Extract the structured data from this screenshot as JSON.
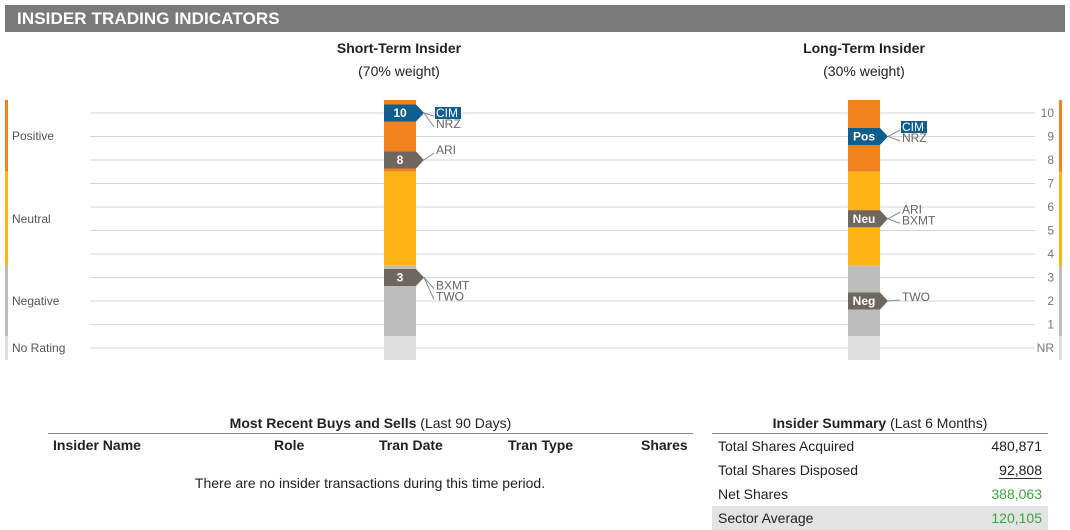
{
  "header": {
    "title": "INSIDER TRADING INDICATORS"
  },
  "short_term": {
    "title": "Short-Term Insider",
    "weight": "(70% weight)"
  },
  "long_term": {
    "title": "Long-Term Insider",
    "weight": "(30% weight)"
  },
  "colors": {
    "positive": "#f0831e",
    "neutral": "#fdb515",
    "negative": "#bdbdbd",
    "no_rating": "#dedede",
    "marker_dark": "#6f665f",
    "marker_blue": "#0f5e8e",
    "highlight_blue": "#0f5e8e",
    "green_value": "#3fa33f"
  },
  "chart_data": {
    "type": "bar",
    "categories": [
      "Positive",
      "Neutral",
      "Negative",
      "No Rating"
    ],
    "right_axis_ticks": [
      "10",
      "9",
      "8",
      "7",
      "6",
      "5",
      "4",
      "3",
      "2",
      "1",
      "NR"
    ],
    "scale": {
      "max": 10,
      "min": 1,
      "bands": {
        "Positive": [
          8,
          10
        ],
        "Neutral": [
          4,
          7
        ],
        "Negative": [
          1,
          3
        ],
        "No Rating": [
          "NR"
        ]
      }
    },
    "series": [
      {
        "name": "Short-Term Insider",
        "markers": [
          {
            "label": "10",
            "value": 10,
            "color": "blue",
            "tickers": [
              "CIM",
              "NRZ"
            ],
            "highlight": "CIM"
          },
          {
            "label": "8",
            "value": 8,
            "color": "dark",
            "tickers": [
              "ARI"
            ]
          },
          {
            "label": "3",
            "value": 3,
            "color": "dark",
            "tickers": [
              "BXMT",
              "TWO"
            ]
          }
        ]
      },
      {
        "name": "Long-Term Insider",
        "markers": [
          {
            "label": "Pos",
            "value": 9,
            "color": "blue",
            "tickers": [
              "CIM",
              "NRZ"
            ],
            "highlight": "CIM"
          },
          {
            "label": "Neu",
            "value": 5.5,
            "color": "dark",
            "tickers": [
              "ARI",
              "BXMT"
            ]
          },
          {
            "label": "Neg",
            "value": 2,
            "color": "dark",
            "tickers": [
              "TWO"
            ]
          }
        ]
      }
    ]
  },
  "recent": {
    "title_bold": "Most Recent Buys and Sells",
    "title_rest": " (Last 90 Days)",
    "columns": [
      "Insider Name",
      "Role",
      "Tran Date",
      "Tran Type",
      "Shares"
    ],
    "empty_message": "There are no insider transactions during this time period."
  },
  "summary": {
    "title_bold": "Insider Summary",
    "title_rest": " (Last 6 Months)",
    "rows": [
      {
        "label": "Total Shares Acquired",
        "value": "480,871"
      },
      {
        "label": "Total Shares Disposed",
        "value": "92,808"
      },
      {
        "label": "Net Shares",
        "value": "388,063"
      },
      {
        "label": "Sector Average",
        "value": "120,105"
      }
    ]
  }
}
